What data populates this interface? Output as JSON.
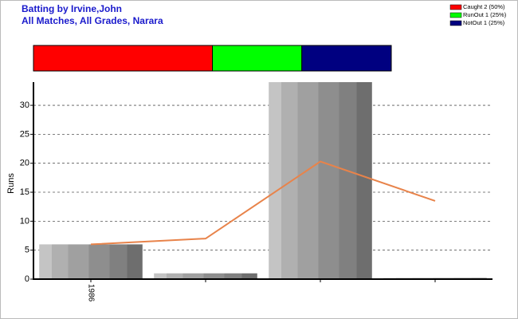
{
  "chart_data": [
    {
      "type": "percent-bar",
      "title": "Batting by Irvine,John",
      "subtitle": "All Matches, All Grades, Narara",
      "xlim": [
        0,
        100
      ],
      "series": [
        {
          "name": "Caught 2 (50%)",
          "color": "#ff0000",
          "values": [
            50
          ]
        },
        {
          "name": "RunOut 1 (25%)",
          "color": "#00ff00",
          "values": [
            25
          ]
        },
        {
          "name": "NotOut 1 (25%)",
          "color": "#000080",
          "values": [
            25
          ]
        }
      ]
    },
    {
      "type": "bar-line",
      "ylabel": "Runs",
      "categories": [
        "1986",
        null,
        null,
        null
      ],
      "ylim": [
        0,
        34
      ],
      "yticks": [
        0,
        5,
        10,
        15,
        20,
        25,
        30
      ],
      "grid": true,
      "series": [
        {
          "type": "bar",
          "color": "#999999",
          "values": [
            6,
            1,
            34,
            0.2
          ]
        },
        {
          "type": "line",
          "color": "#e8834a",
          "values": [
            6,
            7,
            20.3,
            13.5
          ]
        }
      ]
    }
  ]
}
